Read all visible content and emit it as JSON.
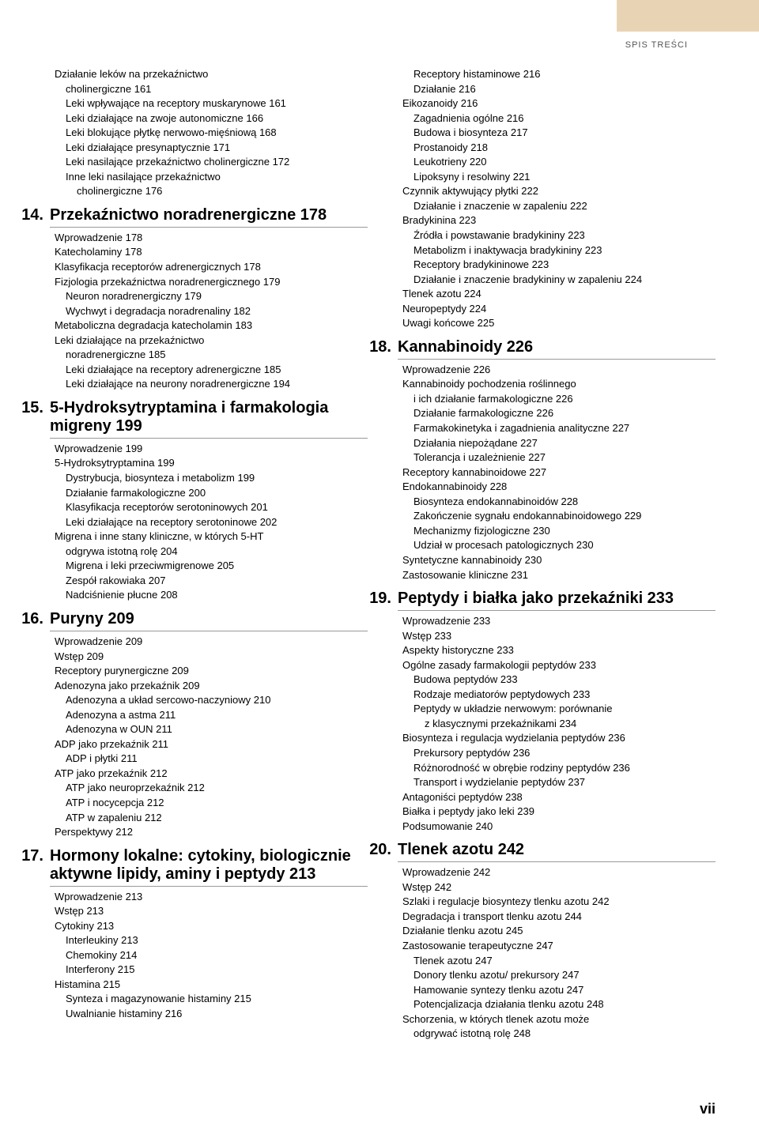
{
  "page": {
    "header_label": "SPIS TREŚCI",
    "page_number": "vii",
    "tab_color": "#e8d4b5",
    "background": "#ffffff"
  },
  "c1": {
    "l0": "Działanie leków na przekaźnictwo",
    "l1": "cholinergiczne  161",
    "l2": "Leki wpływające na receptory muskarynowe  161",
    "l3": "Leki działające na zwoje autonomiczne  166",
    "l4": "Leki blokujące płytkę nerwowo-mięśniową  168",
    "l5": "Leki działające presynaptycznie  171",
    "l6": "Leki nasilające przekaźnictwo cholinergiczne  172",
    "l7": "Inne leki nasilające przekaźnictwo",
    "l8": "cholinergiczne  176",
    "ch14n": "14.",
    "ch14t": "Przekaźnictwo noradrenergiczne  178",
    "l9": "Wprowadzenie  178",
    "l10": "Katecholaminy  178",
    "l11": "Klasyfikacja receptorów adrenergicznych  178",
    "l12": "Fizjologia przekaźnictwa noradrenergicznego  179",
    "l13": "Neuron noradrenergiczny  179",
    "l14": "Wychwyt i degradacja noradrenaliny  182",
    "l15": "Metaboliczna degradacja katecholamin  183",
    "l16": "Leki działające na przekaźnictwo",
    "l17": "noradrenergiczne  185",
    "l18": "Leki działające na receptory adrenergiczne  185",
    "l19": "Leki działające na neurony noradrenergiczne  194",
    "ch15n": "15.",
    "ch15t": "5-Hydroksytryptamina i farmakologia migreny  199",
    "l20": "Wprowadzenie  199",
    "l21": "5-Hydroksytryptamina  199",
    "l22": "Dystrybucja, biosynteza i metabolizm  199",
    "l23": "Działanie farmakologiczne  200",
    "l24": "Klasyfikacja receptorów serotoninowych  201",
    "l25": "Leki działające na receptory serotoninowe  202",
    "l26": "Migrena i inne stany kliniczne, w których 5-HT",
    "l27": "odgrywa istotną rolę  204",
    "l28": "Migrena i leki przeciwmigrenowe  205",
    "l29": "Zespół rakowiaka  207",
    "l30": "Nadciśnienie płucne  208",
    "ch16n": "16.",
    "ch16t": "Puryny  209",
    "l31": "Wprowadzenie  209",
    "l32": "Wstęp  209",
    "l33": "Receptory purynergiczne  209",
    "l34": "Adenozyna jako przekaźnik  209",
    "l35": "Adenozyna a układ sercowo-naczyniowy  210",
    "l36": "Adenozyna a astma  211",
    "l37": "Adenozyna w OUN  211",
    "l38": "ADP jako przekaźnik  211",
    "l39": "ADP i płytki  211",
    "l40": "ATP jako przekaźnik  212",
    "l41": "ATP jako neuroprzekaźnik  212",
    "l42": "ATP i nocycepcja  212",
    "l43": "ATP w zapaleniu  212",
    "l44": "Perspektywy  212",
    "ch17n": "17.",
    "ch17t": "Hormony lokalne: cytokiny, biologicznie aktywne lipidy, aminy i peptydy  213",
    "l45": "Wprowadzenie  213",
    "l46": "Wstęp  213",
    "l47": "Cytokiny  213",
    "l48": "Interleukiny  213",
    "l49": "Chemokiny  214",
    "l50": "Interferony  215",
    "l51": "Histamina  215",
    "l52": "Synteza i magazynowanie histaminy  215",
    "l53": "Uwalnianie histaminy  216"
  },
  "c2": {
    "l0": "Receptory histaminowe  216",
    "l1": "Działanie  216",
    "l2": "Eikozanoidy  216",
    "l3": "Zagadnienia ogólne  216",
    "l4": "Budowa i biosynteza  217",
    "l5": "Prostanoidy  218",
    "l6": "Leukotrieny  220",
    "l7": "Lipoksyny i resolwiny  221",
    "l8": "Czynnik aktywujący płytki  222",
    "l9": "Działanie i znaczenie w zapaleniu  222",
    "l10": "Bradykinina  223",
    "l11": "Źródła i powstawanie bradykininy  223",
    "l12": "Metabolizm i inaktywacja bradykininy  223",
    "l13": "Receptory bradykininowe  223",
    "l14": "Działanie i znaczenie bradykininy w zapaleniu  224",
    "l15": "Tlenek azotu  224",
    "l16": "Neuropeptydy  224",
    "l17": "Uwagi końcowe  225",
    "ch18n": "18.",
    "ch18t": "Kannabinoidy  226",
    "l18": "Wprowadzenie  226",
    "l19": "Kannabinoidy pochodzenia roślinnego",
    "l20": "i ich działanie farmakologiczne  226",
    "l21": "Działanie farmakologiczne  226",
    "l22": "Farmakokinetyka i zagadnienia analityczne  227",
    "l23": "Działania niepożądane  227",
    "l24": "Tolerancja i uzależnienie  227",
    "l25": "Receptory kannabinoidowe  227",
    "l26": "Endokannabinoidy  228",
    "l27": "Biosynteza endokannabinoidów  228",
    "l28": "Zakończenie sygnału endokannabinoidowego  229",
    "l29": "Mechanizmy fizjologiczne  230",
    "l30": "Udział w procesach patologicznych  230",
    "l31": "Syntetyczne kannabinoidy  230",
    "l32": "Zastosowanie kliniczne  231",
    "ch19n": "19.",
    "ch19t": "Peptydy i białka jako przekaźniki  233",
    "l33": "Wprowadzenie  233",
    "l34": "Wstęp  233",
    "l35": "Aspekty historyczne  233",
    "l36": "Ogólne zasady farmakologii peptydów  233",
    "l37": "Budowa peptydów  233",
    "l38": "Rodzaje mediatorów peptydowych  233",
    "l39": "Peptydy w układzie nerwowym: porównanie",
    "l40": "z klasycznymi przekaźnikami  234",
    "l41": "Biosynteza i regulacja wydzielania peptydów  236",
    "l42": "Prekursory peptydów  236",
    "l43": "Różnorodność w obrębie rodziny peptydów  236",
    "l44": "Transport i wydzielanie peptydów  237",
    "l45": "Antagoniści peptydów  238",
    "l46": "Białka i peptydy jako leki  239",
    "l47": "Podsumowanie  240",
    "ch20n": "20.",
    "ch20t": "Tlenek azotu  242",
    "l48": "Wprowadzenie  242",
    "l49": "Wstęp  242",
    "l50": "Szlaki i regulacje biosyntezy tlenku azotu  242",
    "l51": "Degradacja i transport tlenku azotu  244",
    "l52": "Działanie tlenku azotu  245",
    "l53": "Zastosowanie terapeutyczne  247",
    "l54": "Tlenek azotu  247",
    "l55": "Donory tlenku azotu/ prekursory  247",
    "l56": "Hamowanie syntezy tlenku azotu  247",
    "l57": "Potencjalizacja działania tlenku azotu  248",
    "l58": "Schorzenia, w których tlenek azotu może",
    "l59": "odgrywać istotną rolę  248"
  }
}
